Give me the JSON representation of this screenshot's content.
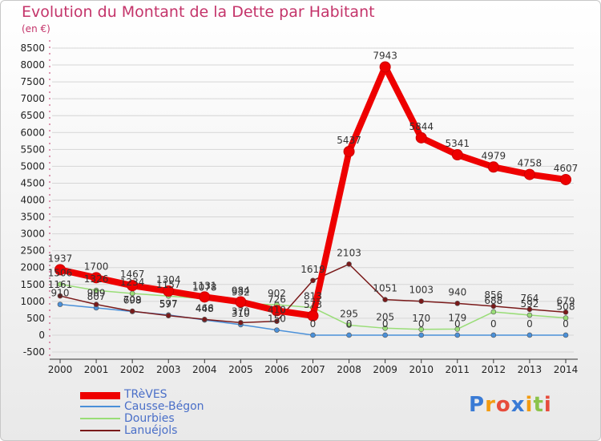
{
  "chart_data": {
    "type": "line",
    "title": "Evolution du Montant de la Dette par Habitant",
    "subtitle": "(en €)",
    "x": [
      "2000",
      "2001",
      "2002",
      "2003",
      "2004",
      "2005",
      "2006",
      "2007",
      "2008",
      "2009",
      "2010",
      "2011",
      "2012",
      "2013",
      "2014"
    ],
    "yticks": [
      8500,
      8000,
      7500,
      7000,
      6500,
      6000,
      5500,
      5000,
      4500,
      4000,
      3500,
      3000,
      2500,
      2000,
      1500,
      1000,
      500,
      0,
      -500
    ],
    "ylim": [
      -500,
      8500
    ],
    "series": [
      {
        "name": "TRèVES",
        "color": "#ee0000",
        "values": [
          1937,
          1700,
          1467,
          1304,
          1131,
          984,
          726,
          573,
          5437,
          7943,
          5844,
          5341,
          4979,
          4758,
          4607
        ],
        "labels": [
          "1937",
          "1700",
          "1467",
          "1304",
          "1131",
          "984",
          "726",
          "573",
          "5437",
          "7943",
          "5844",
          "5341",
          "4979",
          "4758",
          "4607"
        ]
      },
      {
        "name": "Causse-Bégon",
        "color": "#4a90d9",
        "values": [
          910,
          807,
          698,
          597,
          448,
          310,
          150,
          0,
          0,
          0,
          0,
          0,
          0,
          0,
          0
        ],
        "labels": [
          "910",
          "807",
          "698",
          "597",
          "448",
          "310",
          "150",
          "0",
          "0",
          "0",
          "0",
          "0",
          "0",
          "0",
          "0"
        ]
      },
      {
        "name": "Dourbies",
        "color": "#99dd77",
        "values": [
          1506,
          1326,
          1234,
          1157,
          1078,
          932,
          902,
          813,
          295,
          205,
          170,
          179,
          688,
          592,
          508
        ],
        "labels": [
          "1506",
          "1326",
          "1234",
          "1157",
          "1078",
          "932",
          "902",
          "813",
          "295",
          "205",
          "170",
          "179",
          "688",
          "592",
          "508"
        ]
      },
      {
        "name": "Lanuéjols",
        "color": "#7a1a1a",
        "values": [
          1161,
          909,
          709,
          577,
          466,
          370,
          410,
          1619,
          2103,
          1051,
          1003,
          940,
          856,
          764,
          679
        ],
        "labels": [
          "1161",
          "909",
          "709",
          "577",
          "466",
          "370",
          "410",
          "1619",
          "2103",
          "1051",
          "1003",
          "940",
          "856",
          "764",
          "679"
        ]
      }
    ]
  },
  "logo": {
    "text": "Proxiti"
  }
}
